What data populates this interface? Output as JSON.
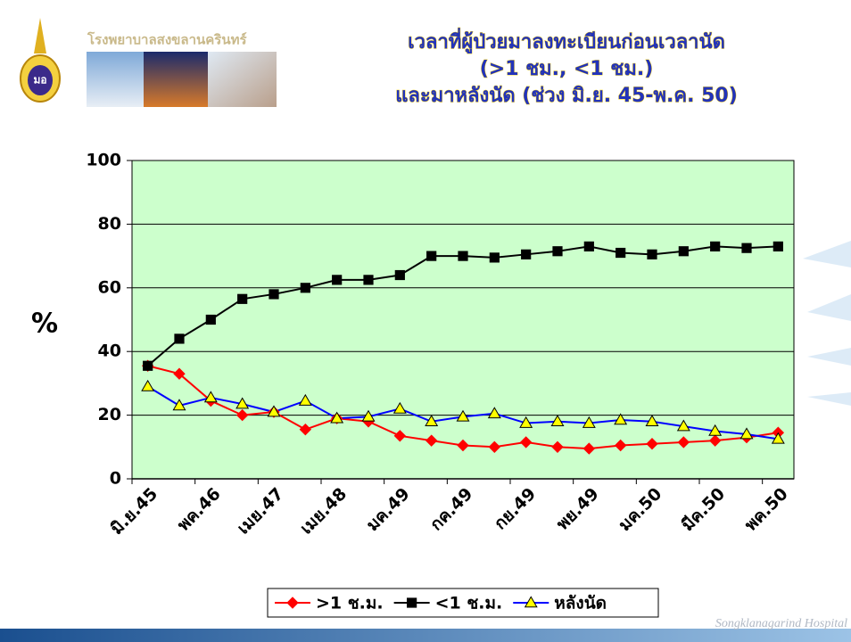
{
  "header": {
    "hospital_name": "โรงพยาบาลสงขลานครินทร์"
  },
  "footer": "Songklanagarind Hospital",
  "chart_data": {
    "type": "line",
    "title": [
      "เวลาที่ผู้ป่วยมาลงทะเบียนก่อนเวลานัด",
      "(>1 ชม., <1 ชม.)",
      "และมาหลังนัด (ช่วง มิ.ย. 45-พ.ค. 50)"
    ],
    "y_label": "%",
    "categories": [
      "มิ.ย.45",
      null,
      "พค.46",
      null,
      "เมย.47",
      null,
      "เมย.48",
      null,
      "มค.49",
      null,
      "กค.49",
      null,
      "กย.49",
      null,
      "พย.49",
      null,
      "มค.50",
      null,
      "มีค.50",
      null,
      "พค.50"
    ],
    "series": [
      {
        "name": ">1 ช.ม.",
        "color": "#ff0000",
        "marker": "diamond",
        "marker_color": "#ff0000",
        "values": [
          35.5,
          33,
          24.5,
          20,
          21,
          15.5,
          19,
          18,
          13.5,
          12,
          10.5,
          10,
          11.5,
          10,
          9.5,
          10.5,
          11,
          11.5,
          12,
          13,
          14.5
        ]
      },
      {
        "name": "<1 ช.ม.",
        "color": "#000000",
        "marker": "square",
        "marker_color": "#000000",
        "values": [
          35.5,
          44,
          50,
          56.5,
          58,
          60,
          62.5,
          62.5,
          64,
          70,
          70,
          69.5,
          70.5,
          71.5,
          73,
          71,
          70.5,
          71.5,
          73,
          72.5,
          73
        ]
      },
      {
        "name": "หลังนัด",
        "color": "#0000ff",
        "marker": "triangle",
        "marker_color": "#ffff00",
        "values": [
          29,
          23,
          25.5,
          23.5,
          21,
          24.5,
          19,
          19.5,
          22,
          18,
          19.5,
          20.5,
          17.5,
          18,
          17.5,
          18.5,
          18,
          16.5,
          15,
          14,
          12.5
        ]
      }
    ],
    "ylim": [
      0,
      100
    ],
    "yticks": [
      0,
      20,
      40,
      60,
      80,
      100
    ],
    "grid": true,
    "plot_background": "#ccffcc",
    "legend": "bottom"
  }
}
